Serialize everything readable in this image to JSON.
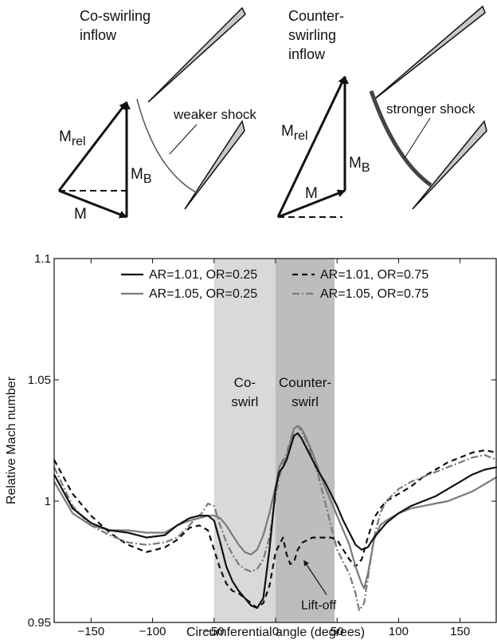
{
  "diagram": {
    "left": {
      "title_line1": "Co-swirling",
      "title_line2": "inflow",
      "vec_rel": "M",
      "vec_rel_sub": "rel",
      "vec_b": "M",
      "vec_b_sub": "B",
      "vec_m": "M",
      "shock_label": "weaker shock"
    },
    "right": {
      "title_line1": "Counter-",
      "title_line2": "swirling",
      "title_line3": "inflow",
      "vec_rel": "M",
      "vec_rel_sub": "rel",
      "vec_b": "M",
      "vec_b_sub": "B",
      "vec_m": "M",
      "shock_label": "stronger shock"
    }
  },
  "chart_data": {
    "type": "line",
    "title": "",
    "xlabel": "Circumferential angle (degrees)",
    "ylabel": "Relative Mach number",
    "xlim": [
      -180,
      180
    ],
    "ylim": [
      0.95,
      1.1
    ],
    "xticks": [
      -150,
      -100,
      -50,
      0,
      50,
      100,
      150
    ],
    "xtick_labels": [
      "−150",
      "−100",
      "−50",
      "0",
      "50",
      "100",
      "150"
    ],
    "yticks": [
      0.95,
      1.0,
      1.05,
      1.1
    ],
    "ytick_labels": [
      "0.95",
      "1",
      "1.05",
      "1.1"
    ],
    "grid": false,
    "legend_position": "top",
    "regions": [
      {
        "name": "co-swirl",
        "label_line1": "Co-",
        "label_line2": "swirl",
        "x0": -50,
        "x1": 0,
        "color": "#d9d9d9"
      },
      {
        "name": "counter-swirl",
        "label_line1": "Counter-",
        "label_line2": "swirl",
        "x0": 0,
        "x1": 48,
        "color": "#bdbdbd"
      }
    ],
    "annotation": {
      "text": "Lift-off",
      "x": 35,
      "y": 0.9555,
      "arrow_to_x": 23,
      "arrow_to_y": 0.9755
    },
    "series": [
      {
        "name": "AR=1.01, OR=0.25",
        "color": "#111111",
        "dash": "",
        "x": [
          -180,
          -165,
          -150,
          -135,
          -120,
          -105,
          -90,
          -80,
          -70,
          -62,
          -55,
          -50,
          -45,
          -40,
          -35,
          -30,
          -25,
          -20,
          -15,
          -10,
          -5,
          0,
          3,
          6,
          9,
          12,
          15,
          18,
          21,
          25,
          30,
          35,
          40,
          45,
          50,
          55,
          60,
          65,
          70,
          75,
          80,
          85,
          90,
          100,
          110,
          120,
          130,
          140,
          150,
          160,
          170,
          180
        ],
        "y": [
          1.011,
          0.997,
          0.991,
          0.988,
          0.987,
          0.985,
          0.986,
          0.99,
          0.993,
          0.994,
          0.994,
          0.992,
          0.983,
          0.973,
          0.967,
          0.963,
          0.96,
          0.957,
          0.956,
          0.96,
          0.98,
          1.005,
          1.012,
          1.014,
          1.017,
          1.022,
          1.027,
          1.028,
          1.026,
          1.022,
          1.017,
          1.012,
          1.008,
          1.003,
          0.998,
          0.992,
          0.987,
          0.982,
          0.98,
          0.981,
          0.985,
          0.988,
          0.991,
          0.995,
          0.998,
          1.0,
          1.002,
          1.005,
          1.008,
          1.011,
          1.013,
          1.014
        ]
      },
      {
        "name": "AR=1.01, OR=0.75",
        "color": "#111111",
        "dash": "7,5",
        "x": [
          -180,
          -165,
          -150,
          -135,
          -120,
          -105,
          -90,
          -80,
          -70,
          -62,
          -55,
          -50,
          -45,
          -40,
          -35,
          -30,
          -25,
          -20,
          -15,
          -10,
          -5,
          0,
          3,
          6,
          9,
          12,
          15,
          18,
          22,
          26,
          30,
          35,
          40,
          45,
          50,
          55,
          60,
          65,
          70,
          75,
          80,
          85,
          90,
          100,
          110,
          120,
          130,
          140,
          150,
          160,
          170,
          180
        ],
        "y": [
          1.017,
          1.003,
          0.994,
          0.987,
          0.982,
          0.979,
          0.981,
          0.984,
          0.989,
          0.99,
          0.988,
          0.98,
          0.972,
          0.966,
          0.963,
          0.962,
          0.96,
          0.958,
          0.956,
          0.958,
          0.965,
          0.979,
          0.982,
          0.985,
          0.978,
          0.974,
          0.975,
          0.98,
          0.983,
          0.984,
          0.985,
          0.985,
          0.985,
          0.985,
          0.984,
          0.98,
          0.976,
          0.973,
          0.976,
          0.985,
          0.993,
          0.997,
          1.0,
          1.003,
          1.006,
          1.01,
          1.013,
          1.016,
          1.018,
          1.02,
          1.021,
          1.02
        ]
      },
      {
        "name": "AR=1.05, OR=0.25",
        "color": "#7a7a7a",
        "dash": "",
        "x": [
          -180,
          -165,
          -150,
          -135,
          -120,
          -105,
          -90,
          -80,
          -70,
          -62,
          -55,
          -50,
          -45,
          -40,
          -35,
          -30,
          -25,
          -20,
          -15,
          -10,
          -5,
          0,
          3,
          6,
          9,
          12,
          15,
          18,
          21,
          25,
          30,
          35,
          40,
          45,
          50,
          55,
          60,
          65,
          70,
          72,
          75,
          80,
          85,
          90,
          100,
          110,
          120,
          130,
          140,
          150,
          160,
          170,
          180
        ],
        "y": [
          1.008,
          0.995,
          0.99,
          0.988,
          0.988,
          0.987,
          0.987,
          0.99,
          0.992,
          0.993,
          0.994,
          0.994,
          0.993,
          0.99,
          0.986,
          0.982,
          0.979,
          0.978,
          0.98,
          0.986,
          0.995,
          1.006,
          1.014,
          1.017,
          1.018,
          1.024,
          1.03,
          1.031,
          1.03,
          1.026,
          1.02,
          1.013,
          1.006,
          1.0,
          0.994,
          0.988,
          0.982,
          0.973,
          0.966,
          0.964,
          0.97,
          0.984,
          0.99,
          0.992,
          0.995,
          0.997,
          0.998,
          0.999,
          1.0,
          1.002,
          1.004,
          1.007,
          1.01
        ]
      },
      {
        "name": "AR=1.05, OR=0.75",
        "color": "#7a7a7a",
        "dash": "9,3,2,3",
        "x": [
          -180,
          -165,
          -150,
          -135,
          -120,
          -105,
          -90,
          -80,
          -70,
          -65,
          -60,
          -55,
          -50,
          -45,
          -40,
          -35,
          -30,
          -25,
          -20,
          -15,
          -10,
          -5,
          0,
          3,
          6,
          9,
          12,
          15,
          18,
          21,
          25,
          30,
          35,
          40,
          45,
          50,
          55,
          60,
          65,
          68,
          72,
          75,
          80,
          85,
          90,
          100,
          110,
          120,
          130,
          140,
          150,
          160,
          170,
          180
        ],
        "y": [
          1.014,
          0.998,
          0.99,
          0.986,
          0.983,
          0.982,
          0.983,
          0.985,
          0.99,
          0.993,
          0.995,
          0.999,
          0.998,
          0.99,
          0.983,
          0.978,
          0.974,
          0.972,
          0.971,
          0.972,
          0.976,
          0.985,
          1.002,
          1.01,
          1.015,
          1.02,
          1.025,
          1.03,
          1.031,
          1.029,
          1.025,
          1.018,
          1.01,
          1.0,
          0.99,
          0.98,
          0.975,
          0.97,
          0.962,
          0.955,
          0.958,
          0.968,
          0.985,
          0.995,
          1.0,
          1.005,
          1.008,
          1.01,
          1.012,
          1.014,
          1.016,
          1.018,
          1.019,
          1.017
        ]
      }
    ]
  }
}
